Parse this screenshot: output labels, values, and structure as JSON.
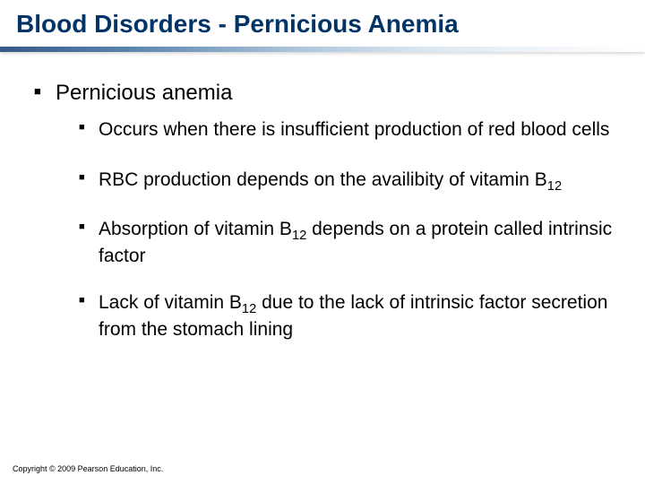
{
  "colors": {
    "title_color": "#003366",
    "body_text": "#000000",
    "background": "#ffffff",
    "underline_gradient": [
      "#355a85",
      "#5b84ad",
      "#a9c3da",
      "#d9e6f0",
      "#f2f6fa",
      "#ffffff"
    ]
  },
  "typography": {
    "title_fontsize_pt": 21,
    "lvl1_fontsize_pt": 18,
    "lvl2_fontsize_pt": 16,
    "footer_fontsize_pt": 7,
    "font_family": "Arial"
  },
  "title": {
    "plain": "Blood Disorders - Pernicious Anemia"
  },
  "bullets": {
    "lvl1": "Pernicious anemia",
    "lvl2": [
      {
        "pre": "Occurs when there is insufficient production of red blood cells",
        "sub": "",
        "post": ""
      },
      {
        "pre": "RBC production depends on the availibity of vitamin B",
        "sub": "12",
        "post": ""
      },
      {
        "pre": "Absorption of vitamin B",
        "sub": "12",
        "post": " depends on a protein called intrinsic factor"
      },
      {
        "pre": "Lack of vitamin B",
        "sub": "12",
        "post": " due to the lack of intrinsic factor secretion from the stomach lining"
      }
    ]
  },
  "footer": "Copyright © 2009 Pearson Education, Inc."
}
